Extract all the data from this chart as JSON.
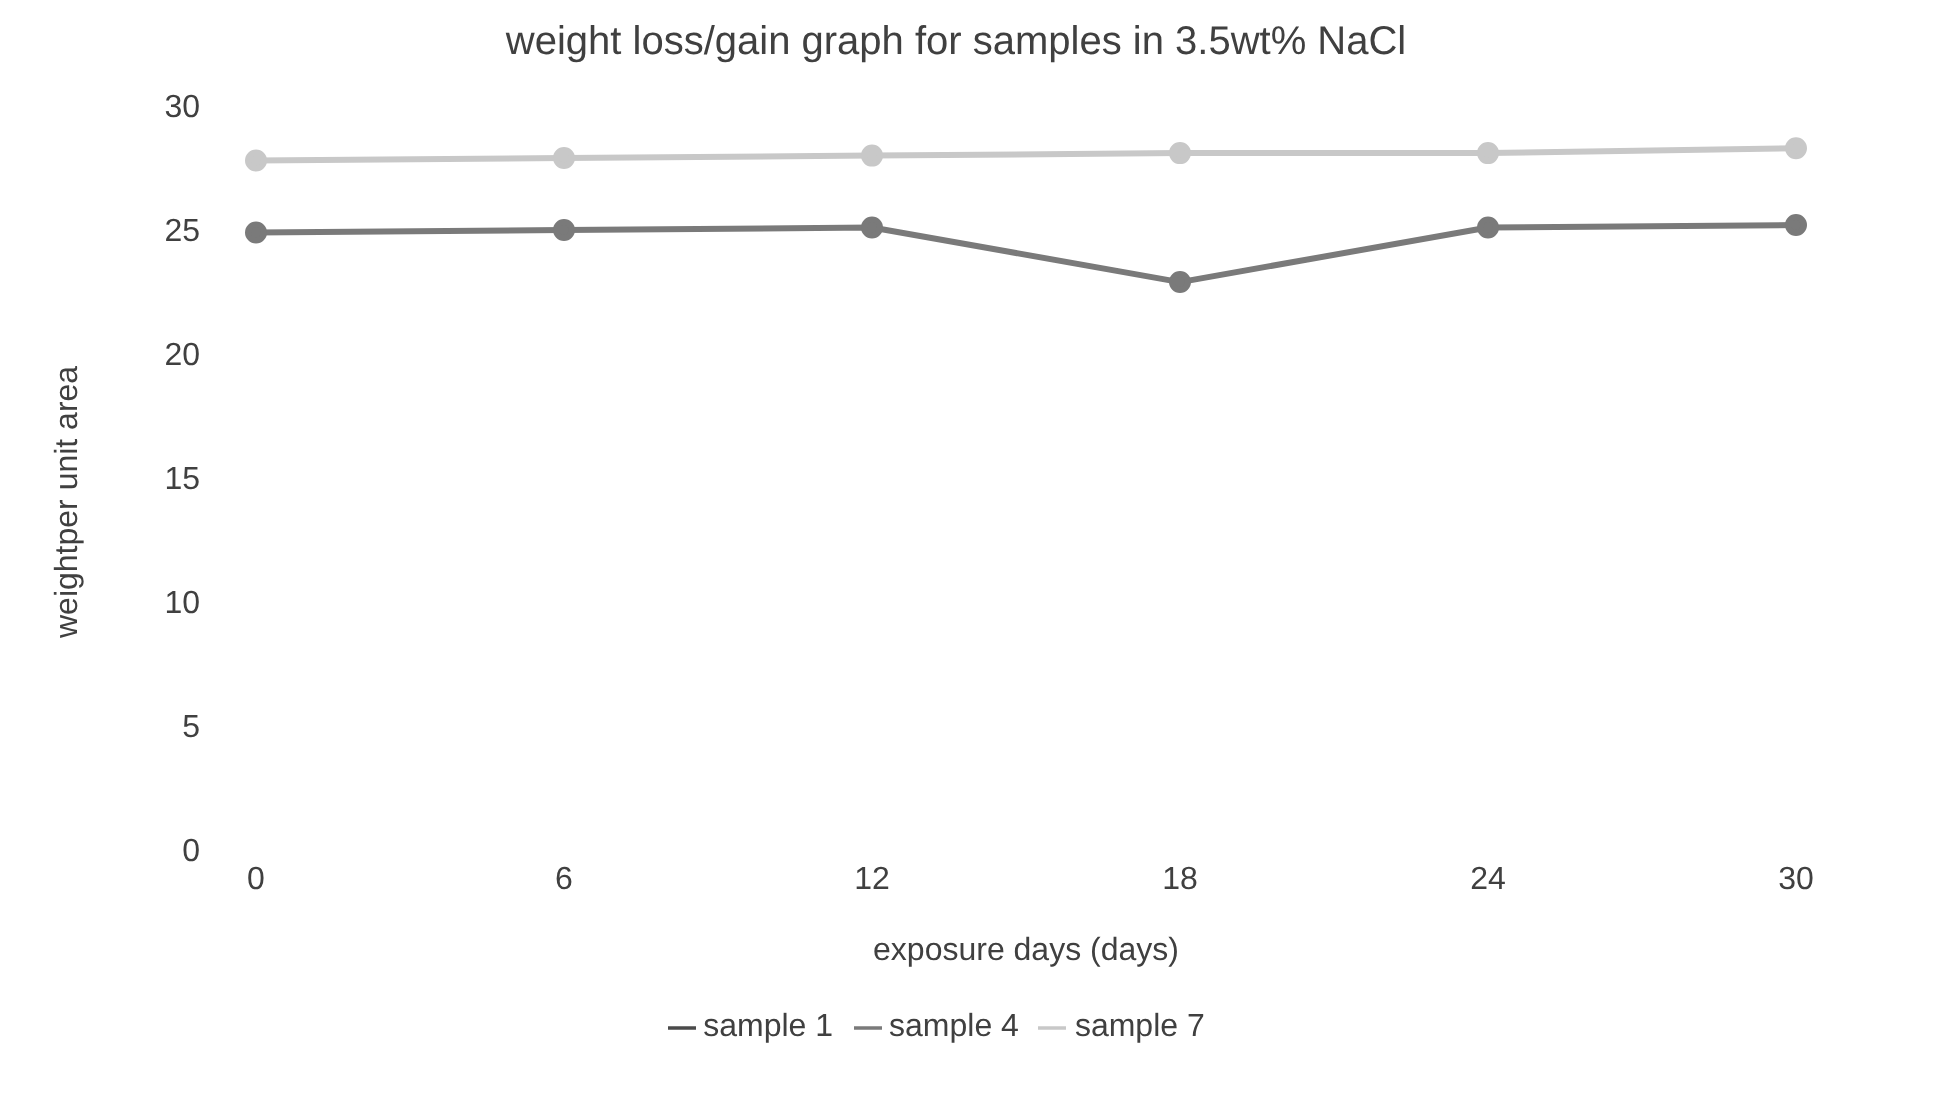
{
  "chart_data": {
    "type": "line",
    "title": "weight loss/gain graph for samples in 3.5wt% NaCl",
    "xlabel": "exposure days (days)",
    "ylabel": "weightper unit area",
    "categories": [
      "0",
      "6",
      "12",
      "18",
      "24",
      "30"
    ],
    "series": [
      {
        "name": "sample 1",
        "color": "#4a4a4a",
        "values": [
          null,
          null,
          null,
          null,
          null,
          null
        ]
      },
      {
        "name": "sample 4",
        "color": "#7a7a7a",
        "values": [
          24.9,
          25,
          25.1,
          22.9,
          25.1,
          25.2
        ]
      },
      {
        "name": "sample 7",
        "color": "#c8c8c8",
        "values": [
          27.8,
          27.9,
          28,
          28.1,
          28.1,
          28.3
        ]
      }
    ],
    "ylim": [
      0,
      30
    ],
    "yticks": [
      0,
      5,
      10,
      15,
      20,
      25,
      30
    ],
    "grid": false,
    "legend": "bottom",
    "marker": "circle",
    "line_style": "solid"
  }
}
